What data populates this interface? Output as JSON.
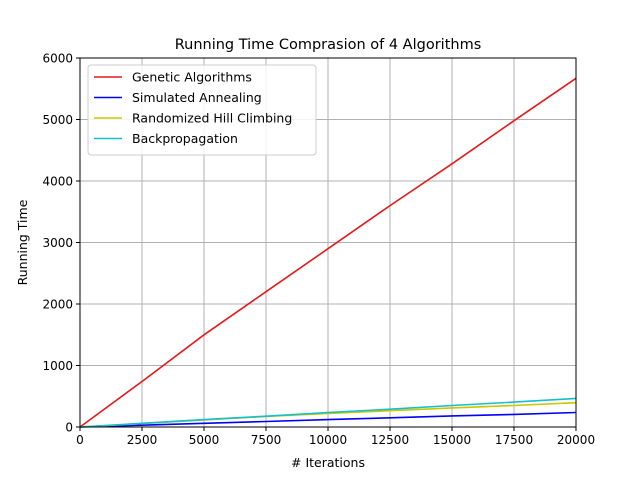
{
  "chart_data": {
    "type": "line",
    "title": "Running Time Comprasion of 4 Algorithms",
    "xlabel": "# Iterations",
    "ylabel": "Running Time",
    "xlim": [
      0,
      20000
    ],
    "ylim": [
      0,
      6000
    ],
    "x_ticks": [
      0,
      2500,
      5000,
      7500,
      10000,
      12500,
      15000,
      17500,
      20000
    ],
    "y_ticks": [
      0,
      1000,
      2000,
      3000,
      4000,
      5000,
      6000
    ],
    "grid": true,
    "legend_position": "top-left",
    "series": [
      {
        "name": "Genetic Algorithms",
        "color": "#e41a1c",
        "x": [
          0,
          2500,
          5000,
          7500,
          10000,
          12500,
          15000,
          17500,
          20000
        ],
        "y": [
          0,
          740,
          1500,
          2200,
          2900,
          3600,
          4280,
          4980,
          5670
        ]
      },
      {
        "name": "Simulated Annealing",
        "color": "#0000ff",
        "x": [
          0,
          2500,
          5000,
          7500,
          10000,
          12500,
          15000,
          17500,
          20000
        ],
        "y": [
          0,
          30,
          60,
          90,
          120,
          150,
          180,
          205,
          235
        ]
      },
      {
        "name": "Randomized Hill Climbing",
        "color": "#c8c800",
        "x": [
          0,
          2500,
          5000,
          7500,
          10000,
          12500,
          15000,
          17500,
          20000
        ],
        "y": [
          0,
          55,
          115,
          170,
          220,
          265,
          310,
          350,
          395
        ]
      },
      {
        "name": "Backpropagation",
        "color": "#17becf",
        "x": [
          0,
          2500,
          5000,
          7500,
          10000,
          12500,
          15000,
          17500,
          20000
        ],
        "y": [
          0,
          60,
          120,
          175,
          235,
          290,
          350,
          405,
          465
        ]
      }
    ]
  }
}
